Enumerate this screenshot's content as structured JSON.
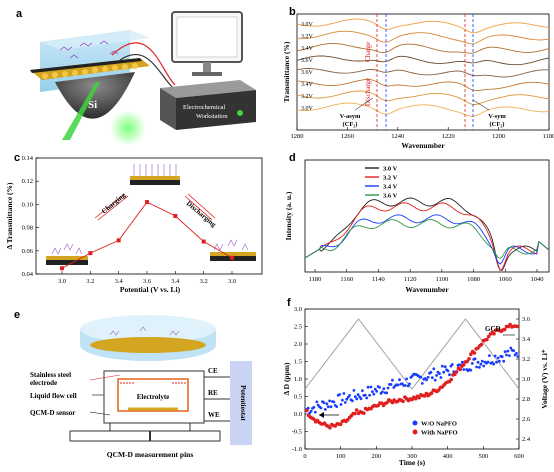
{
  "panels": {
    "a": {
      "label": "a",
      "device_text": "Electrochemical Workstation",
      "device_line1": "Electrochemical",
      "device_line2": "Workstation",
      "si_label": "Si"
    },
    "b": {
      "label": "b",
      "ylabel": "Transmittance (%)",
      "xlabel": "Wavenumber",
      "voltages": [
        "3.0V",
        "3.2V",
        "3.4V",
        "3.6V",
        "3.6V",
        "3.4V",
        "3.2V",
        "3.0V"
      ],
      "charge_label": "Charge",
      "discharge_label": "Discharge",
      "vasym_label": "V-asym",
      "vasym_sub": "(CF₂)",
      "vsym_label": "V-sym",
      "vsym_sub": "(CF₂)",
      "xticks": [
        "1280",
        "1260",
        "1240",
        "1220",
        "1200",
        "1180"
      ]
    },
    "c": {
      "label": "c",
      "ylabel": "Δ Transmittance (%)",
      "xlabel": "Potential (V vs. Li)",
      "yticks": [
        "0.04",
        "0.06",
        "0.08",
        "0.10",
        "0.12",
        "0.14"
      ],
      "xticks": [
        "3.0",
        "3.2",
        "3.4",
        "3.6",
        "3.4",
        "3.2",
        "3.0"
      ],
      "charging": "Charging",
      "discharging": "Discharging"
    },
    "d": {
      "label": "d",
      "ylabel": "Intensity (a. u.)",
      "xlabel": "Wavenumber",
      "legend": [
        "3.0 V",
        "3.2 V",
        "3.4 V",
        "3.6 V"
      ],
      "xticks": [
        "1180",
        "1160",
        "1140",
        "1120",
        "1100",
        "1080",
        "1060",
        "1040"
      ]
    },
    "e": {
      "label": "e",
      "stainless": "Stainless steel",
      "electrode": "electrode",
      "liquid_flow": "Liquid flow cell",
      "qcm_sensor": "QCM-D sensor",
      "electrolyte": "Electrolyte",
      "ce": "CE",
      "re": "RE",
      "we": "WE",
      "potentiostat": "Potentiostat",
      "pins": "QCM-D measurement pins"
    },
    "f": {
      "label": "f",
      "ylabel": "Δ D (ppm)",
      "y2label": "Voltage (V) vs. Li⁺",
      "xlabel": "Time (s)",
      "gcd": "GCD",
      "legend": [
        "W/O NaPFO",
        "With NaPFO"
      ],
      "yticks": [
        "-1.0",
        "-0.5",
        "0.0",
        "0.5",
        "1.0",
        "1.5",
        "2.0",
        "2.5",
        "3.0"
      ],
      "y2ticks": [
        "2.4",
        "2.6",
        "2.8",
        "3.0",
        "3.2",
        "3.4",
        "3.6"
      ],
      "xticks": [
        "0",
        "100",
        "200",
        "300",
        "400",
        "500",
        "600"
      ]
    }
  },
  "chart_data": [
    {
      "type": "line",
      "panel": "b",
      "title": "",
      "xlabel": "Wavenumber",
      "ylabel": "Transmittance (%)",
      "xlim": [
        1280,
        1180
      ],
      "series": [
        {
          "name": "3.0V"
        },
        {
          "name": "3.2V"
        },
        {
          "name": "3.4V"
        },
        {
          "name": "3.6V"
        },
        {
          "name": "3.6V"
        },
        {
          "name": "3.4V"
        },
        {
          "name": "3.2V"
        },
        {
          "name": "3.0V"
        }
      ]
    },
    {
      "type": "line",
      "panel": "c",
      "xlabel": "Potential (V vs. Li)",
      "ylabel": "Δ Transmittance (%)",
      "categories": [
        "3.0",
        "3.2",
        "3.4",
        "3.6",
        "3.4",
        "3.2",
        "3.0"
      ],
      "values": [
        0.045,
        0.058,
        0.069,
        0.102,
        0.09,
        0.068,
        0.054
      ],
      "ylim": [
        0.04,
        0.14
      ]
    },
    {
      "type": "line",
      "panel": "d",
      "xlabel": "Wavenumber",
      "ylabel": "Intensity (a. u.)",
      "xlim": [
        1190,
        1035
      ],
      "series": [
        {
          "name": "3.0 V"
        },
        {
          "name": "3.2 V"
        },
        {
          "name": "3.4 V"
        },
        {
          "name": "3.6 V"
        }
      ]
    },
    {
      "type": "scatter",
      "panel": "f",
      "xlabel": "Time (s)",
      "ylabel": "Δ D (ppm)",
      "xlim": [
        0,
        600
      ],
      "ylim": [
        -1.0,
        3.0
      ],
      "y2lim": [
        2.3,
        3.7
      ],
      "series": [
        {
          "name": "W/O NaPFO"
        },
        {
          "name": "With NaPFO"
        },
        {
          "name": "GCD"
        }
      ]
    }
  ],
  "colors": {
    "red": "#e02020",
    "blue": "#1a3cff",
    "gray": "#999999",
    "orange": "#e8a23a"
  }
}
